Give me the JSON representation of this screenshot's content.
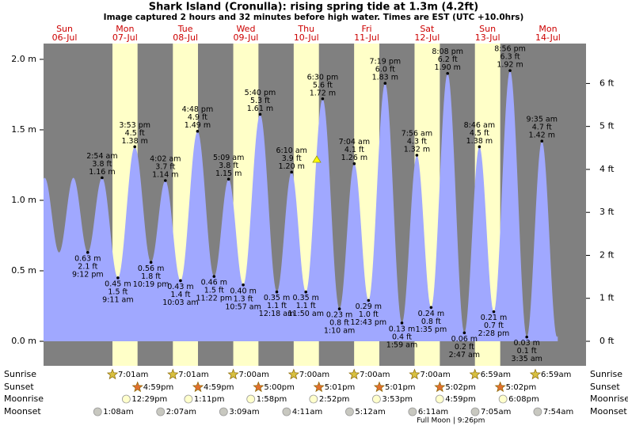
{
  "chart_data": {
    "type": "tide",
    "title": "Shark Island (Cronulla): rising  spring tide at 1.3m (4.2ft)",
    "subtitle": "Image captured 2 hours and 32 minutes before high water. Times are EST (UTC +10.0hrs)",
    "ylim": [
      -0.174,
      2.112
    ],
    "yticks": [
      {
        "value": 0,
        "label": "0.0 m"
      },
      {
        "value": 0.5,
        "label": "0.5 m"
      },
      {
        "value": 1,
        "label": "1.0 m"
      },
      {
        "value": 1.5,
        "label": "1.5 m"
      },
      {
        "value": 2,
        "label": "2.0 m"
      }
    ],
    "y2lim": [
      -0.571,
      6.929
    ],
    "y2ticks": [
      {
        "value": 0,
        "label": "0 ft"
      },
      {
        "value": 1,
        "label": "1 ft"
      },
      {
        "value": 2,
        "label": "2 ft"
      },
      {
        "value": 3,
        "label": "3 ft"
      },
      {
        "value": 4,
        "label": "4 ft"
      },
      {
        "value": 5,
        "label": "5 ft"
      },
      {
        "value": 6,
        "label": "6 ft"
      }
    ],
    "row_labels": [
      "Sunrise",
      "Sunset",
      "Moonrise",
      "Moonset"
    ],
    "colors": {
      "night": "#808080",
      "day": "#ffffc8",
      "water": "#a0a8ff",
      "day_name": "#cc0000"
    },
    "days": [
      {
        "name": "Sun",
        "date": "06-Jul",
        "extremes": [
          {
            "time": "9:12 pm",
            "height_m": 0.63,
            "label_m": "0.63 m",
            "label_ft": "2.1 ft"
          }
        ]
      },
      {
        "name": "Mon",
        "date": "07-Jul",
        "sunrise": "7:01am",
        "sunset": "4:59pm",
        "moonrise": "12:29pm",
        "moonset": "1:08am",
        "extremes": [
          {
            "time": "2:54 am",
            "height_m": 1.16,
            "label_m": "1.16 m",
            "label_ft": "3.8 ft"
          },
          {
            "time": "9:11 am",
            "height_m": 0.45,
            "label_m": "0.45 m",
            "label_ft": "1.5 ft"
          },
          {
            "time": "3:53 pm",
            "height_m": 1.38,
            "label_m": "1.38 m",
            "label_ft": "4.5 ft"
          },
          {
            "time": "10:19 pm",
            "height_m": 0.56,
            "label_m": "0.56 m",
            "label_ft": "1.8 ft"
          }
        ]
      },
      {
        "name": "Tue",
        "date": "08-Jul",
        "sunrise": "7:01am",
        "sunset": "4:59pm",
        "moonrise": "1:11pm",
        "moonset": "2:07am",
        "extremes": [
          {
            "time": "4:02 am",
            "height_m": 1.14,
            "label_m": "1.14 m",
            "label_ft": "3.7 ft"
          },
          {
            "time": "10:03 am",
            "height_m": 0.43,
            "label_m": "0.43 m",
            "label_ft": "1.4 ft"
          },
          {
            "time": "4:48 pm",
            "height_m": 1.49,
            "label_m": "1.49 m",
            "label_ft": "4.9 ft"
          },
          {
            "time": "11:22 pm",
            "height_m": 0.46,
            "label_m": "0.46 m",
            "label_ft": "1.5 ft"
          }
        ]
      },
      {
        "name": "Wed",
        "date": "09-Jul",
        "sunrise": "7:00am",
        "sunset": "5:00pm",
        "moonrise": "1:58pm",
        "moonset": "3:09am",
        "extremes": [
          {
            "time": "5:09 am",
            "height_m": 1.15,
            "label_m": "1.15 m",
            "label_ft": "3.8 ft"
          },
          {
            "time": "10:57 am",
            "height_m": 0.4,
            "label_m": "0.40 m",
            "label_ft": "1.3 ft"
          },
          {
            "time": "5:40 pm",
            "height_m": 1.61,
            "label_m": "1.61 m",
            "label_ft": "5.3 ft"
          }
        ]
      },
      {
        "name": "Thu",
        "date": "10-Jul",
        "sunrise": "7:00am",
        "sunset": "5:01pm",
        "moonrise": "2:52pm",
        "moonset": "4:11am",
        "extremes": [
          {
            "time": "12:18 am",
            "height_m": 0.35,
            "label_m": "0.35 m",
            "label_ft": "1.1 ft"
          },
          {
            "time": "6:10 am",
            "height_m": 1.2,
            "label_m": "1.20 m",
            "label_ft": "3.9 ft"
          },
          {
            "time": "11:50 am",
            "height_m": 0.35,
            "label_m": "0.35 m",
            "label_ft": "1.1 ft"
          },
          {
            "time": "6:30 pm",
            "height_m": 1.72,
            "label_m": "1.72 m",
            "label_ft": "5.6 ft"
          }
        ]
      },
      {
        "name": "Fri",
        "date": "11-Jul",
        "sunrise": "7:00am",
        "sunset": "5:01pm",
        "moonrise": "3:53pm",
        "moonset": "5:12am",
        "extremes": [
          {
            "time": "1:10 am",
            "height_m": 0.23,
            "label_m": "0.23 m",
            "label_ft": "0.8 ft"
          },
          {
            "time": "7:04 am",
            "height_m": 1.26,
            "label_m": "1.26 m",
            "label_ft": "4.1 ft"
          },
          {
            "time": "12:43 pm",
            "height_m": 0.29,
            "label_m": "0.29 m",
            "label_ft": "1.0 ft"
          },
          {
            "time": "7:19 pm",
            "height_m": 1.83,
            "label_m": "1.83 m",
            "label_ft": "6.0 ft"
          }
        ]
      },
      {
        "name": "Sat",
        "date": "12-Jul",
        "sunrise": "7:00am",
        "sunset": "5:02pm",
        "moonrise": "4:59pm",
        "moonset": "6:11am",
        "full_moon": "Full Moon | 9:26pm",
        "extremes": [
          {
            "time": "1:59 am",
            "height_m": 0.13,
            "label_m": "0.13 m",
            "label_ft": "0.4 ft"
          },
          {
            "time": "7:56 am",
            "height_m": 1.32,
            "label_m": "1.32 m",
            "label_ft": "4.3 ft"
          },
          {
            "time": "1:35 pm",
            "height_m": 0.24,
            "label_m": "0.24 m",
            "label_ft": "0.8 ft"
          },
          {
            "time": "8:08 pm",
            "height_m": 1.9,
            "label_m": "1.90 m",
            "label_ft": "6.2 ft"
          }
        ]
      },
      {
        "name": "Sun",
        "date": "13-Jul",
        "sunrise": "6:59am",
        "sunset": "5:02pm",
        "moonrise": "6:08pm",
        "moonset": "7:05am",
        "extremes": [
          {
            "time": "2:47 am",
            "height_m": 0.06,
            "label_m": "0.06 m",
            "label_ft": "0.2 ft"
          },
          {
            "time": "8:46 am",
            "height_m": 1.38,
            "label_m": "1.38 m",
            "label_ft": "4.5 ft"
          },
          {
            "time": "2:28 pm",
            "height_m": 0.21,
            "label_m": "0.21 m",
            "label_ft": "0.7 ft"
          },
          {
            "time": "8:56 pm",
            "height_m": 1.92,
            "label_m": "1.92 m",
            "label_ft": "6.3 ft"
          }
        ]
      },
      {
        "name": "Mon",
        "date": "14-Jul",
        "sunrise": "6:59am",
        "moonset": "7:54am",
        "extremes": [
          {
            "time": "3:35 am",
            "height_m": 0.03,
            "label_m": "0.03 m",
            "label_ft": "0.1 ft"
          },
          {
            "time": "9:35 am",
            "height_m": 1.42,
            "label_m": "1.42 m",
            "label_ft": "4.7 ft"
          }
        ]
      }
    ]
  }
}
